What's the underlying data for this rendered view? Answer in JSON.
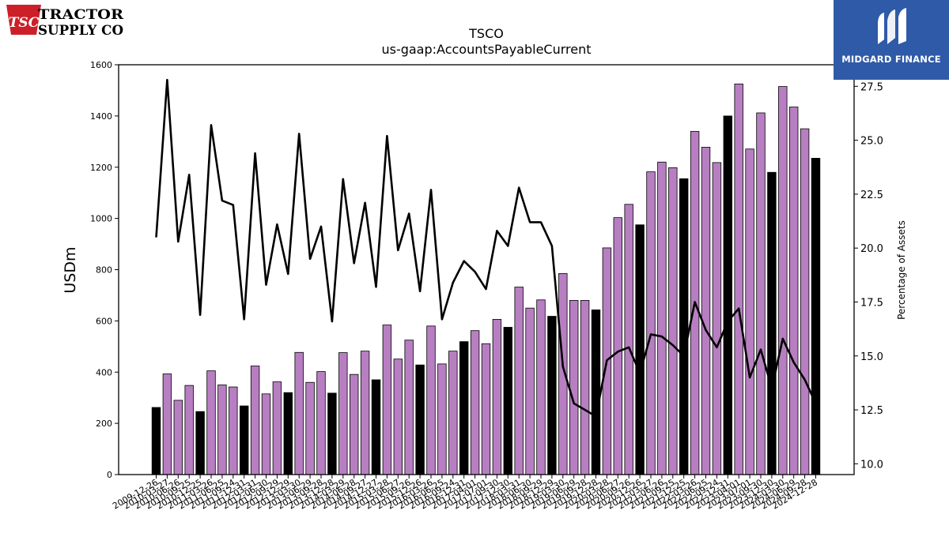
{
  "header": {
    "title": "TSCO",
    "subtitle": "us-gaap:AccountsPayableCurrent"
  },
  "logos": {
    "left_mark": "TSC",
    "left_line1": "TRACTOR",
    "left_line2": "SUPPLY CO",
    "right_brand": "MIDGARD FINANCE"
  },
  "colors": {
    "bar_fy": "#000000",
    "bar_q": "#b77fc1",
    "line": "#000000",
    "logo_left": "#cc1f27",
    "logo_right_bg": "#2f5aa8"
  },
  "chart_data": {
    "type": "bar",
    "title": "TSCO",
    "subtitle": "us-gaap:AccountsPayableCurrent",
    "ylabel": "USDm",
    "y2label": "Percentage of Assets",
    "ylim": [
      0,
      1600
    ],
    "y2lim": [
      9.5,
      28.5
    ],
    "yticks": [
      0,
      200,
      400,
      600,
      800,
      1000,
      1200,
      1400,
      1600
    ],
    "y2ticks": [
      "10.0",
      "12.5",
      "15.0",
      "17.5",
      "20.0",
      "22.5",
      "25.0",
      "27.5"
    ],
    "grid": false,
    "categories": [
      "2009-12-26",
      "2010-03-27",
      "2010-06-26",
      "2010-09-25",
      "2010-12-25",
      "2011-03-26",
      "2011-06-25",
      "2011-09-24",
      "2011-12-31",
      "2012-03-31",
      "2012-06-30",
      "2012-09-29",
      "2012-12-29",
      "2013-03-30",
      "2013-06-29",
      "2013-09-28",
      "2013-12-28",
      "2014-03-29",
      "2014-06-28",
      "2014-09-27",
      "2014-12-27",
      "2015-03-28",
      "2015-06-27",
      "2015-09-26",
      "2015-12-26",
      "2016-03-26",
      "2016-06-25",
      "2016-09-24",
      "2016-12-31",
      "2017-04-01",
      "2017-07-01",
      "2017-09-30",
      "2017-12-30",
      "2018-03-31",
      "2018-06-30",
      "2018-09-29",
      "2018-12-29",
      "2019-03-30",
      "2019-06-29",
      "2019-09-28",
      "2019-12-28",
      "2020-03-28",
      "2020-06-27",
      "2020-09-26",
      "2020-12-26",
      "2021-03-27",
      "2021-06-26",
      "2021-09-25",
      "2021-12-25",
      "2022-03-26",
      "2022-06-25",
      "2022-09-24",
      "2022-12-31",
      "2023-04-01",
      "2023-07-01",
      "2023-09-30",
      "2023-12-30",
      "2024-03-30",
      "2024-06-29",
      "2024-09-28",
      "2024-12-28"
    ],
    "fiscal_year_end": [
      1,
      0,
      0,
      0,
      1,
      0,
      0,
      0,
      1,
      0,
      0,
      0,
      1,
      0,
      0,
      0,
      1,
      0,
      0,
      0,
      1,
      0,
      0,
      0,
      1,
      0,
      0,
      0,
      1,
      0,
      0,
      0,
      1,
      0,
      0,
      0,
      1,
      0,
      0,
      0,
      1,
      0,
      0,
      0,
      1,
      0,
      0,
      0,
      1,
      0,
      0,
      0,
      1,
      0,
      0,
      0,
      1,
      0,
      0,
      0,
      1
    ],
    "values": [
      262,
      393,
      290,
      348,
      246,
      405,
      350,
      342,
      268,
      424,
      315,
      362,
      320,
      477,
      360,
      402,
      318,
      476,
      391,
      482,
      370,
      584,
      451,
      525,
      428,
      580,
      432,
      482,
      519,
      562,
      511,
      606,
      575,
      732,
      650,
      682,
      618,
      785,
      680,
      680,
      643,
      885,
      1003,
      1055,
      975,
      1182,
      1220,
      1198,
      1155,
      1340,
      1278,
      1218,
      1400,
      1525,
      1271,
      1412,
      1180,
      1515,
      1435,
      1350,
      1235
    ],
    "series": [
      {
        "axis": "right",
        "values": [
          20.5,
          27.8,
          20.3,
          23.4,
          16.9,
          25.7,
          22.2,
          22.0,
          16.7,
          24.4,
          18.3,
          21.1,
          18.8,
          25.3,
          19.5,
          21.0,
          16.6,
          23.2,
          19.3,
          22.1,
          18.2,
          25.2,
          19.9,
          21.6,
          18.0,
          22.7,
          16.7,
          18.4,
          19.4,
          18.9,
          18.1,
          20.8,
          20.1,
          22.8,
          21.2,
          21.2,
          20.1,
          14.5,
          12.8,
          12.5,
          12.2,
          14.8,
          15.2,
          15.4,
          14.2,
          16.0,
          15.9,
          15.5,
          15.0,
          17.5,
          16.2,
          15.4,
          16.6,
          17.2,
          14.0,
          15.3,
          13.5,
          15.8,
          14.7,
          13.9,
          12.8
        ]
      }
    ]
  }
}
